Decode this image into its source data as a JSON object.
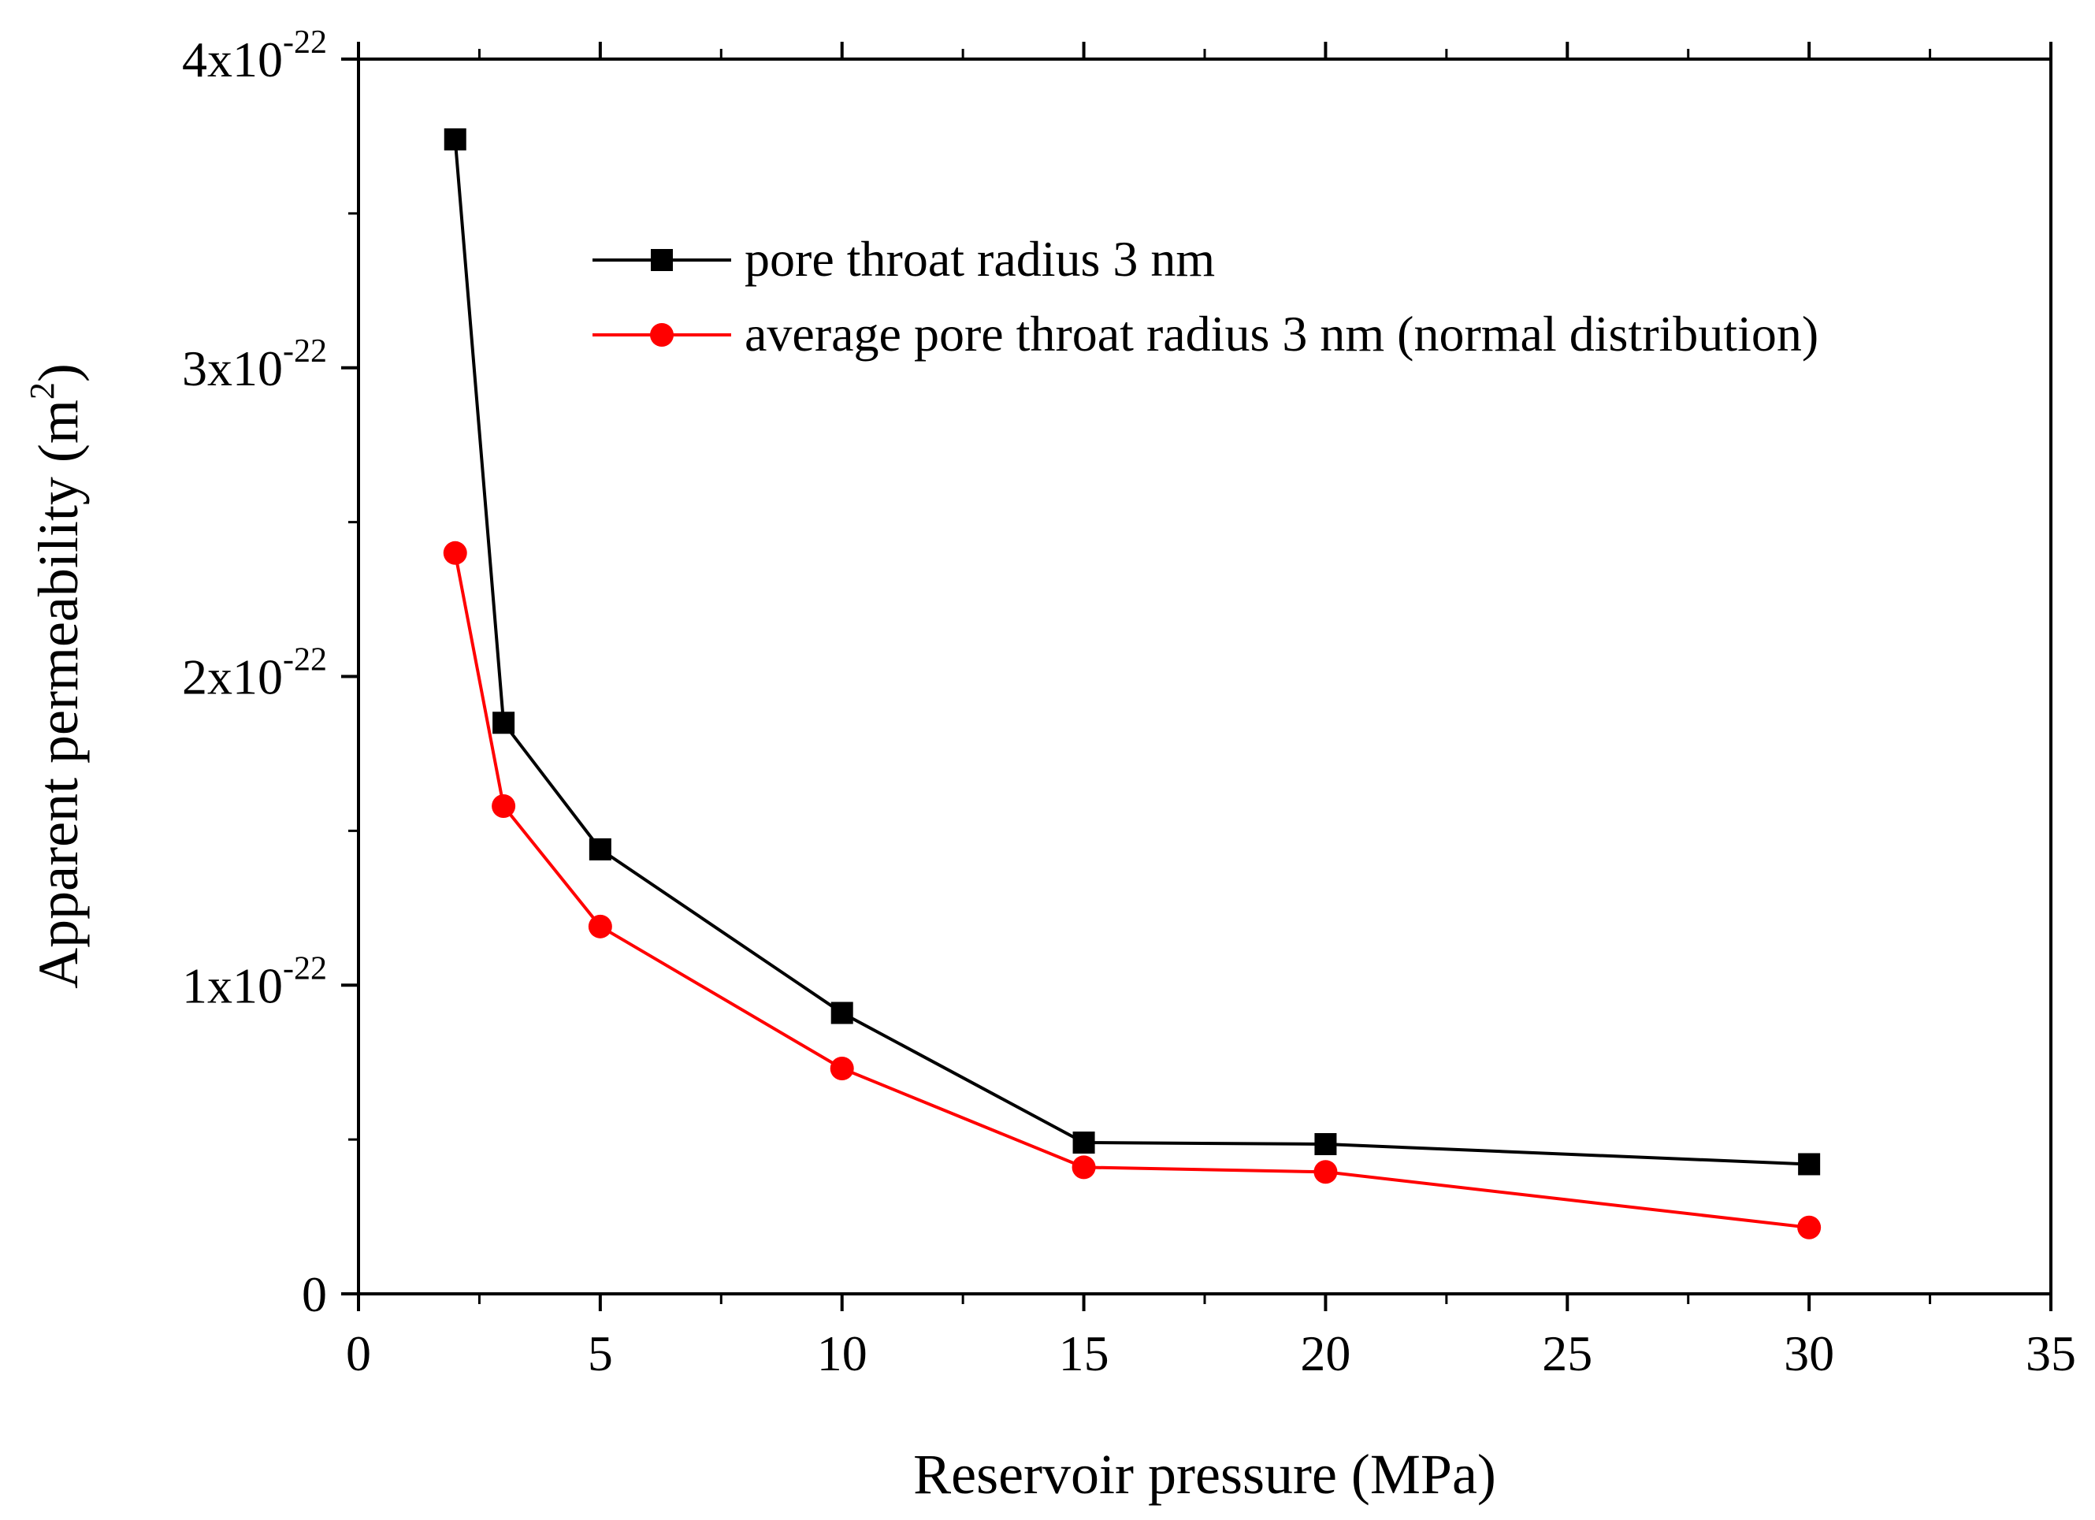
{
  "chart_data": {
    "type": "line",
    "title": "",
    "xlabel": "Reservoir pressure (MPa)",
    "ylabel": "Apparent permeability (m",
    "ylabel_sup": "2",
    "ylabel_close": ")",
    "xlim": [
      0,
      35
    ],
    "ylim": [
      0,
      4e-22
    ],
    "x_ticks": [
      {
        "value": 0,
        "label": "0"
      },
      {
        "value": 5,
        "label": "5"
      },
      {
        "value": 10,
        "label": "10"
      },
      {
        "value": 15,
        "label": "15"
      },
      {
        "value": 20,
        "label": "20"
      },
      {
        "value": 25,
        "label": "25"
      },
      {
        "value": 30,
        "label": "30"
      },
      {
        "value": 35,
        "label": "35"
      }
    ],
    "y_ticks": [
      {
        "value": 0,
        "mant": "0",
        "exp": ""
      },
      {
        "value": 1e-22,
        "mant": "1x10",
        "exp": "-22"
      },
      {
        "value": 2e-22,
        "mant": "2x10",
        "exp": "-22"
      },
      {
        "value": 3e-22,
        "mant": "3x10",
        "exp": "-22"
      },
      {
        "value": 4e-22,
        "mant": "4x10",
        "exp": "-22"
      }
    ],
    "grid": false,
    "legend_position": "top-center",
    "series": [
      {
        "name": "pore throat radius 3 nm",
        "color": "#000000",
        "marker": "square",
        "x": [
          2,
          3,
          5,
          10,
          15,
          20,
          30
        ],
        "y": [
          3.74e-22,
          1.85e-22,
          1.44e-22,
          9.1e-23,
          4.9e-23,
          4.85e-23,
          4.2e-23
        ]
      },
      {
        "name": "average pore throat radius 3 nm (normal distribution)",
        "color": "#ff0000",
        "marker": "circle",
        "x": [
          2,
          3,
          5,
          10,
          15,
          20,
          30
        ],
        "y": [
          2.4e-22,
          1.58e-22,
          1.19e-22,
          7.3e-23,
          4.1e-23,
          3.95e-23,
          2.15e-23
        ]
      }
    ]
  }
}
